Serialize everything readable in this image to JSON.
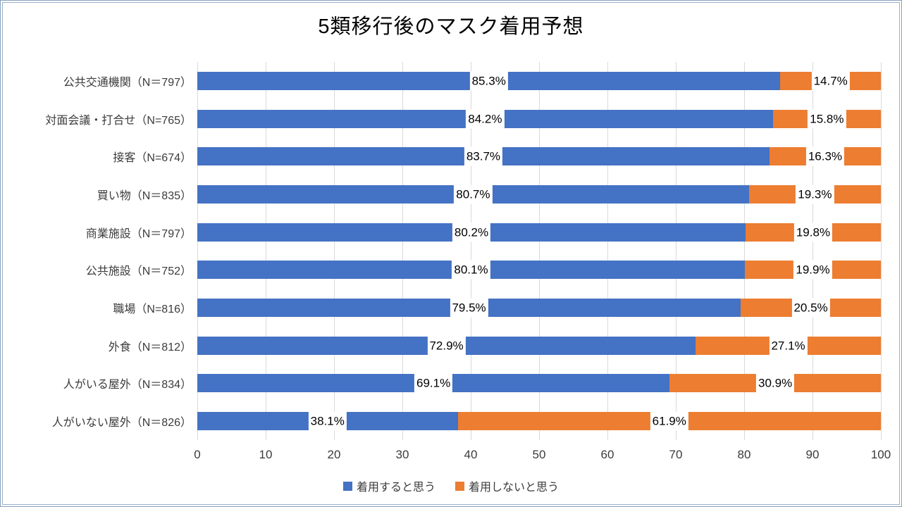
{
  "title": "5類移行後のマスク着用予想",
  "colors": {
    "wear": "#4472C4",
    "not_wear": "#ED7D31",
    "gridline": "#D9D9D9",
    "border": "#87A0BD",
    "label_background": "#FFFFFF",
    "text": "#3B3B3B"
  },
  "legend": [
    {
      "label": "着用すると思う",
      "color": "#4472C4"
    },
    {
      "label": "着用しないと思う",
      "color": "#ED7D31"
    }
  ],
  "chart_data": {
    "type": "bar",
    "orientation": "horizontal",
    "stacked": true,
    "title": "5類移行後のマスク着用予想",
    "xlabel": "",
    "ylabel": "",
    "xlim": [
      0,
      100
    ],
    "grid": true,
    "legend_position": "bottom",
    "x_ticks": [
      0,
      10,
      20,
      30,
      40,
      50,
      60,
      70,
      80,
      90,
      100
    ],
    "series_names": [
      "着用すると思う",
      "着用しないと思う"
    ],
    "rows": [
      {
        "label": "公共交通機関（N＝797）",
        "wear": 85.3,
        "not_wear": 14.7,
        "wear_label": "85.3%",
        "not_wear_label": "14.7%"
      },
      {
        "label": "対面会議・打合せ（N=765）",
        "wear": 84.2,
        "not_wear": 15.8,
        "wear_label": "84.2%",
        "not_wear_label": "15.8%"
      },
      {
        "label": "接客（N=674）",
        "wear": 83.7,
        "not_wear": 16.3,
        "wear_label": "83.7%",
        "not_wear_label": "16.3%"
      },
      {
        "label": "買い物（N＝835）",
        "wear": 80.7,
        "not_wear": 19.3,
        "wear_label": "80.7%",
        "not_wear_label": "19.3%"
      },
      {
        "label": "商業施設（N＝797）",
        "wear": 80.2,
        "not_wear": 19.8,
        "wear_label": "80.2%",
        "not_wear_label": "19.8%"
      },
      {
        "label": "公共施設（N＝752）",
        "wear": 80.1,
        "not_wear": 19.9,
        "wear_label": "80.1%",
        "not_wear_label": "19.9%"
      },
      {
        "label": "職場（N=816）",
        "wear": 79.5,
        "not_wear": 20.5,
        "wear_label": "79.5%",
        "not_wear_label": "20.5%"
      },
      {
        "label": "外食（N＝812）",
        "wear": 72.9,
        "not_wear": 27.1,
        "wear_label": "72.9%",
        "not_wear_label": "27.1%"
      },
      {
        "label": "人がいる屋外（N＝834）",
        "wear": 69.1,
        "not_wear": 30.9,
        "wear_label": "69.1%",
        "not_wear_label": "30.9%"
      },
      {
        "label": "人がいない屋外（N＝826）",
        "wear": 38.1,
        "not_wear": 61.9,
        "wear_label": "38.1%",
        "not_wear_label": "61.9%"
      }
    ]
  }
}
